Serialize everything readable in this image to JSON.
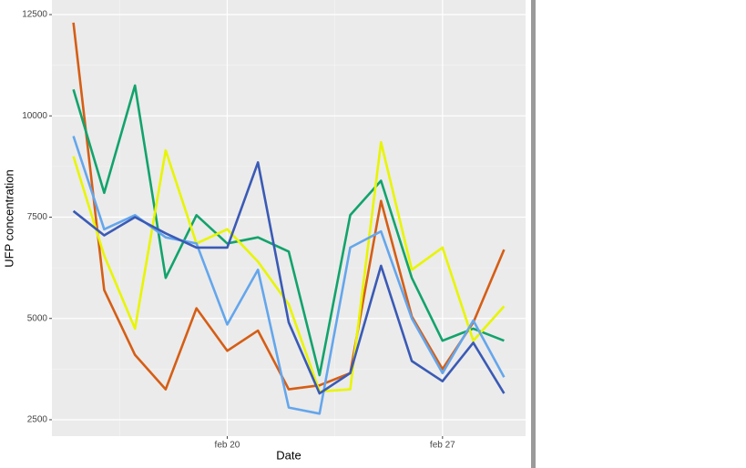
{
  "chart_data": {
    "type": "line",
    "x_label": "Date",
    "y_label": "UFP concentration",
    "x": [
      15,
      16,
      17,
      18,
      19,
      20,
      21,
      22,
      23,
      24,
      25,
      26,
      27,
      28,
      29
    ],
    "xlim": [
      14.3,
      29.7
    ],
    "xticks": [
      {
        "value": 20,
        "label": "feb 20"
      },
      {
        "value": 27,
        "label": "feb 27"
      }
    ],
    "ylim": [
      2095,
      12860
    ],
    "yticks": [
      2500,
      5000,
      7500,
      10000,
      12500
    ],
    "grid": true,
    "series": [
      {
        "color": "#d55e15",
        "values": [
          12300,
          5700,
          4100,
          3250,
          5250,
          4200,
          4700,
          3250,
          3350,
          3650,
          7900,
          5050,
          3750,
          4900,
          6700
        ]
      },
      {
        "color": "#12a36c",
        "values": [
          10650,
          8100,
          10750,
          6000,
          7550,
          6850,
          7000,
          6650,
          3600,
          7550,
          8400,
          6000,
          4450,
          4750,
          4450
        ]
      },
      {
        "color": "#e8f500",
        "values": [
          9000,
          6550,
          4750,
          9150,
          6850,
          7200,
          6400,
          5350,
          3200,
          3250,
          9350,
          6200,
          6750,
          4450,
          5300
        ]
      },
      {
        "color": "#64a6ec",
        "values": [
          9500,
          7200,
          7550,
          7000,
          6850,
          4850,
          6200,
          2800,
          2650,
          6750,
          7150,
          5000,
          3650,
          4950,
          3550
        ]
      },
      {
        "color": "#3a5ab5",
        "values": [
          7650,
          7050,
          7500,
          7100,
          6750,
          6750,
          8850,
          4900,
          3150,
          3650,
          6300,
          3950,
          3450,
          4400,
          3150
        ]
      }
    ]
  }
}
